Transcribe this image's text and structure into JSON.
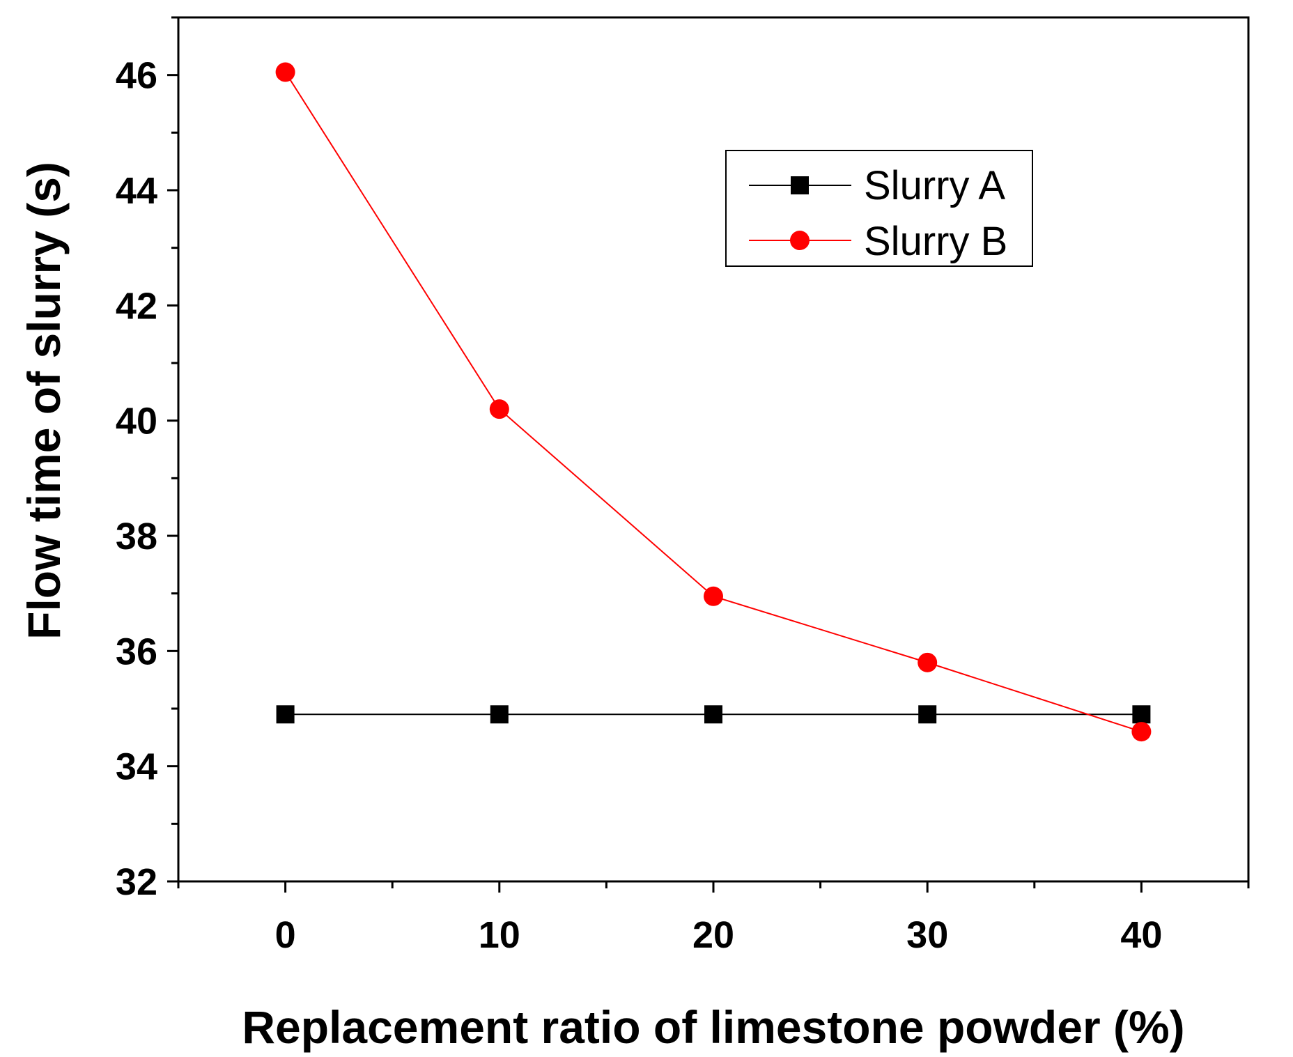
{
  "chart_data": {
    "type": "line",
    "xlabel": "Replacement ratio of limestone powder (%)",
    "ylabel": "Flow time of slurry (s)",
    "x": [
      0,
      10,
      20,
      30,
      40
    ],
    "xlim": [
      -5,
      45
    ],
    "ylim": [
      32,
      47
    ],
    "xticks": [
      0,
      10,
      20,
      30,
      40
    ],
    "xticks_minor": [
      -5,
      5,
      15,
      25,
      35,
      45
    ],
    "yticks": [
      32,
      34,
      36,
      38,
      40,
      42,
      44,
      46
    ],
    "yticks_minor": [
      33,
      35,
      37,
      39,
      41,
      43,
      45,
      47
    ],
    "xtick_labels": [
      "0",
      "10",
      "20",
      "30",
      "40"
    ],
    "ytick_labels": [
      "32",
      "34",
      "36",
      "38",
      "40",
      "42",
      "44",
      "46"
    ],
    "grid": false,
    "legend_position": "top-right",
    "series": [
      {
        "name": "Slurry A",
        "values": [
          34.9,
          34.9,
          34.9,
          34.9,
          34.9
        ],
        "color": "#000000",
        "marker": "square"
      },
      {
        "name": "Slurry B",
        "values": [
          46.05,
          40.2,
          36.95,
          35.8,
          34.6
        ],
        "color": "#ff0000",
        "marker": "circle"
      }
    ]
  }
}
